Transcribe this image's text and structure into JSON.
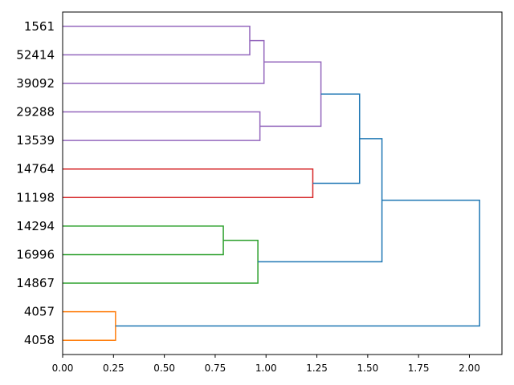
{
  "chart_data": {
    "type": "dendrogram",
    "orientation": "left",
    "xlim": [
      0,
      2.16
    ],
    "x_ticks": [
      "0.00",
      "0.25",
      "0.50",
      "0.75",
      "1.00",
      "1.25",
      "1.50",
      "1.75",
      "2.00"
    ],
    "grid": false,
    "leaves": [
      "1561",
      "52414",
      "39092",
      "29288",
      "13539",
      "14764",
      "11198",
      "14294",
      "16996",
      "14867",
      "4057",
      "4058"
    ],
    "colors": {
      "purple": "#9467bd",
      "red": "#d62728",
      "green": "#2ca02c",
      "orange": "#ff7f0e",
      "blue": "#1f77b4"
    },
    "merges": [
      {
        "left": "1561",
        "right": "52414",
        "height": 0.92,
        "color": "purple"
      },
      {
        "left": "m0",
        "right": "39092",
        "height": 0.99,
        "color": "purple"
      },
      {
        "left": "29288",
        "right": "13539",
        "height": 0.97,
        "color": "purple"
      },
      {
        "left": "m1",
        "right": "m2",
        "height": 1.27,
        "color": "purple"
      },
      {
        "left": "14764",
        "right": "11198",
        "height": 1.23,
        "color": "red"
      },
      {
        "left": "m3",
        "right": "m4",
        "height": 1.46,
        "color": "blue"
      },
      {
        "left": "14294",
        "right": "16996",
        "height": 0.79,
        "color": "green"
      },
      {
        "left": "m6",
        "right": "14867",
        "height": 0.96,
        "color": "green"
      },
      {
        "left": "m5",
        "right": "m7",
        "height": 1.57,
        "color": "blue"
      },
      {
        "left": "4057",
        "right": "4058",
        "height": 0.26,
        "color": "orange"
      },
      {
        "left": "m8",
        "right": "m9",
        "height": 2.05,
        "color": "blue"
      }
    ]
  }
}
